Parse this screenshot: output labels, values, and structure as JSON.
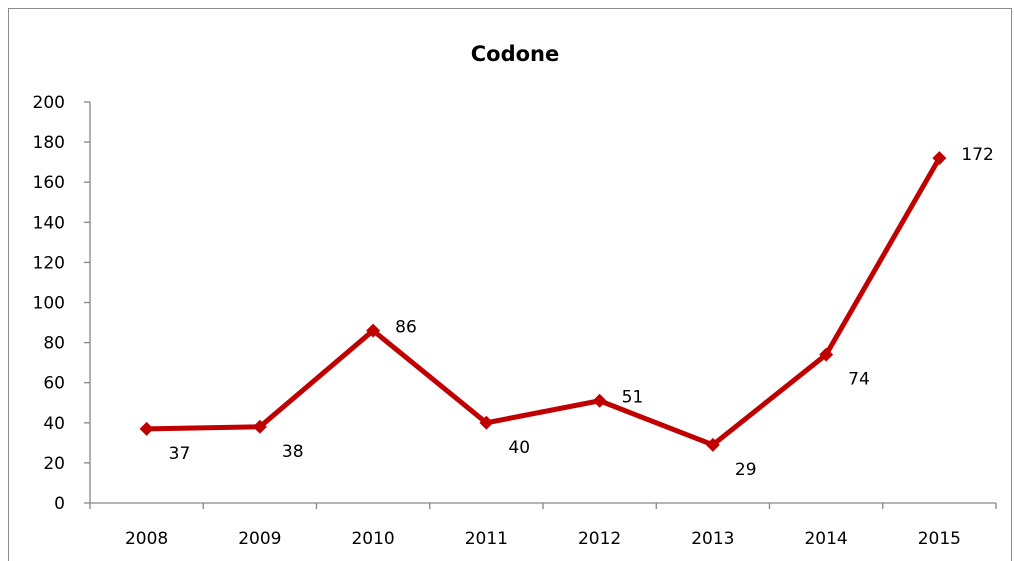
{
  "chart_data": {
    "type": "line",
    "title": "Codone",
    "xlabel": "",
    "ylabel": "",
    "categories": [
      "2008",
      "2009",
      "2010",
      "2011",
      "2012",
      "2013",
      "2014",
      "2015"
    ],
    "series": [
      {
        "values": [
          37,
          38,
          86,
          40,
          51,
          29,
          74,
          172
        ],
        "color": "#c00000",
        "marker": "diamond"
      }
    ],
    "ylim": [
      0,
      200
    ],
    "yticks": [
      0,
      20,
      40,
      60,
      80,
      100,
      120,
      140,
      160,
      180,
      200
    ],
    "grid": false,
    "legend": "none",
    "data_labels": true
  }
}
